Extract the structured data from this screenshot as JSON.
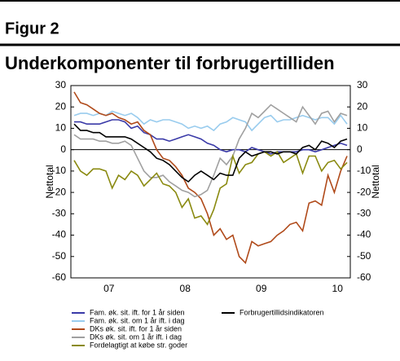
{
  "chart_data": {
    "type": "line",
    "heading": "Figur 2",
    "title": "Underkomponenter til forbrugertilliden",
    "ylabel": "Nettotal",
    "y2label": "Nettotal",
    "categories": [
      null,
      null,
      null,
      null,
      null,
      null,
      "07",
      null,
      null,
      null,
      null,
      null,
      null,
      null,
      null,
      null,
      null,
      null,
      "08",
      null,
      null,
      null,
      null,
      null,
      null,
      null,
      null,
      null,
      null,
      null,
      "09",
      null,
      null,
      null,
      null,
      null,
      null,
      null,
      null,
      null,
      null,
      null,
      "10",
      null
    ],
    "ylim": [
      -60,
      30
    ],
    "yticks": [
      -60,
      -50,
      -40,
      -30,
      -20,
      -10,
      0,
      10,
      20,
      30
    ],
    "y2lim": [
      -60,
      30
    ],
    "y2ticks": [
      -60,
      -50,
      -40,
      -30,
      -20,
      -10,
      0,
      10,
      20,
      30
    ],
    "series": [
      {
        "name": "Fam. øk. sit. ift. for 1 år siden",
        "color": "#3a3aa8",
        "values": [
          13,
          13,
          12,
          12,
          12,
          13,
          14,
          14,
          13,
          10,
          11,
          8,
          7,
          5,
          5,
          4,
          5,
          6,
          7,
          6,
          5,
          3,
          2,
          0,
          -1,
          0,
          0,
          -1,
          1,
          0,
          -1,
          -2,
          -1,
          -1,
          -1,
          -1,
          0,
          0,
          -1,
          0,
          1,
          2,
          3,
          2
        ]
      },
      {
        "name": "Fam. øk. sit. om 1 år ift. i dag",
        "color": "#99ccee",
        "values": [
          16,
          17,
          17,
          16,
          17,
          16,
          18,
          17,
          16,
          17,
          15,
          12,
          14,
          13,
          14,
          14,
          13,
          12,
          10,
          11,
          10,
          11,
          9,
          12,
          13,
          15,
          14,
          13,
          9,
          12,
          15,
          16,
          13,
          14,
          14,
          15,
          16,
          15,
          14,
          15,
          15,
          12,
          16,
          12
        ]
      },
      {
        "name": "DKs øk. sit. ift. for 1 år siden",
        "color": "#b04a1a",
        "values": [
          27,
          22,
          21,
          19,
          17,
          16,
          17,
          15,
          14,
          12,
          13,
          9,
          7,
          0,
          -4,
          -5,
          -8,
          -12,
          -18,
          -20,
          -23,
          -30,
          -40,
          -37,
          -42,
          -40,
          -50,
          -53,
          -43,
          -45,
          -44,
          -43,
          -40,
          -38,
          -35,
          -34,
          -38,
          -25,
          -24,
          -26,
          -12,
          -20,
          -10,
          -3
        ]
      },
      {
        "name": "DKs øk. sit. om 1 år ift. i dag",
        "color": "#a0a0a0",
        "values": [
          7,
          5,
          5,
          5,
          4,
          4,
          3,
          3,
          4,
          2,
          -4,
          -10,
          -13,
          -13,
          -12,
          -15,
          -17,
          -19,
          -20,
          -22,
          -21,
          -19,
          -12,
          -4,
          -7,
          -3,
          5,
          10,
          17,
          15,
          18,
          21,
          19,
          17,
          15,
          13,
          20,
          16,
          12,
          17,
          18,
          13,
          17,
          16
        ]
      },
      {
        "name": "Fordelagtigt at købe str. goder",
        "color": "#8a8a10",
        "values": [
          -5,
          -10,
          -12,
          -9,
          -9,
          -10,
          -18,
          -12,
          -14,
          -10,
          -12,
          -17,
          -14,
          -11,
          -16,
          -17,
          -20,
          -27,
          -23,
          -32,
          -31,
          -35,
          -28,
          -18,
          -16,
          -3,
          -11,
          -7,
          -6,
          -2,
          -1,
          -3,
          -1,
          -6,
          -4,
          -2,
          -11,
          -3,
          -3,
          -10,
          -6,
          -5,
          -9,
          -6
        ]
      },
      {
        "name": "Forbrugertillidsindikatoren",
        "color": "#000000",
        "values": [
          12,
          9,
          9,
          8,
          8,
          6,
          6,
          6,
          6,
          5,
          3,
          1,
          -1,
          -4,
          -5,
          -7,
          -10,
          -13,
          -15,
          -12,
          -10,
          -12,
          -14,
          -11,
          -12,
          -12,
          -4,
          -1,
          -3,
          -2,
          -1,
          -1,
          -2,
          -1,
          -1,
          -2,
          1,
          2,
          0,
          4,
          3,
          1,
          4,
          5
        ]
      }
    ]
  }
}
